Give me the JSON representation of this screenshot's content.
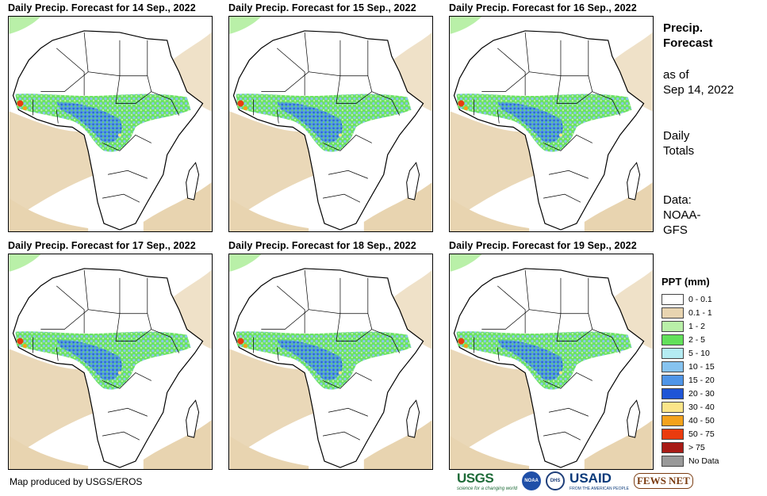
{
  "panels": [
    {
      "title": "Daily Precip. Forecast for 14  Sep., 2022"
    },
    {
      "title": "Daily Precip. Forecast for 15  Sep., 2022"
    },
    {
      "title": "Daily Precip. Forecast for 16  Sep., 2022"
    },
    {
      "title": "Daily Precip. Forecast for 17  Sep., 2022"
    },
    {
      "title": "Daily Precip. Forecast for 18  Sep., 2022"
    },
    {
      "title": "Daily Precip. Forecast for 19  Sep., 2022"
    }
  ],
  "side": {
    "title_line1": "Precip.",
    "title_line2": "Forecast",
    "asof_line1": "as of",
    "asof_line2": "Sep 14, 2022",
    "daily_line1": "Daily",
    "daily_line2": "Totals",
    "data_line1": "Data:",
    "data_line2": "NOAA-",
    "data_line3": "GFS"
  },
  "legend": {
    "title": "PPT (mm)",
    "items": [
      {
        "label": "0 - 0.1",
        "color": "#ffffff"
      },
      {
        "label": "0.1 - 1",
        "color": "#e8d4b0"
      },
      {
        "label": "1 - 2",
        "color": "#b9f0a8"
      },
      {
        "label": "2 - 5",
        "color": "#62e05a"
      },
      {
        "label": "5 - 10",
        "color": "#b4ecf2"
      },
      {
        "label": "10 - 15",
        "color": "#86c3f0"
      },
      {
        "label": "15 - 20",
        "color": "#4f95e8"
      },
      {
        "label": "20 - 30",
        "color": "#1f55d6"
      },
      {
        "label": "30 - 40",
        "color": "#fbe589"
      },
      {
        "label": "40 - 50",
        "color": "#f4a21c"
      },
      {
        "label": "50 - 75",
        "color": "#ea3b0e"
      },
      {
        "label": "> 75",
        "color": "#a81b16"
      },
      {
        "label": "No Data",
        "color": "#999999"
      }
    ]
  },
  "credit": "Map produced by USGS/EROS",
  "logos": {
    "usgs": "USGS",
    "usgs_sub": "science for a changing world",
    "noaa": "NOAA",
    "dhs": "DHS",
    "usaid": "USAID",
    "usaid_sub": "FROM THE AMERICAN PEOPLE",
    "fews": "FEWS NET"
  }
}
